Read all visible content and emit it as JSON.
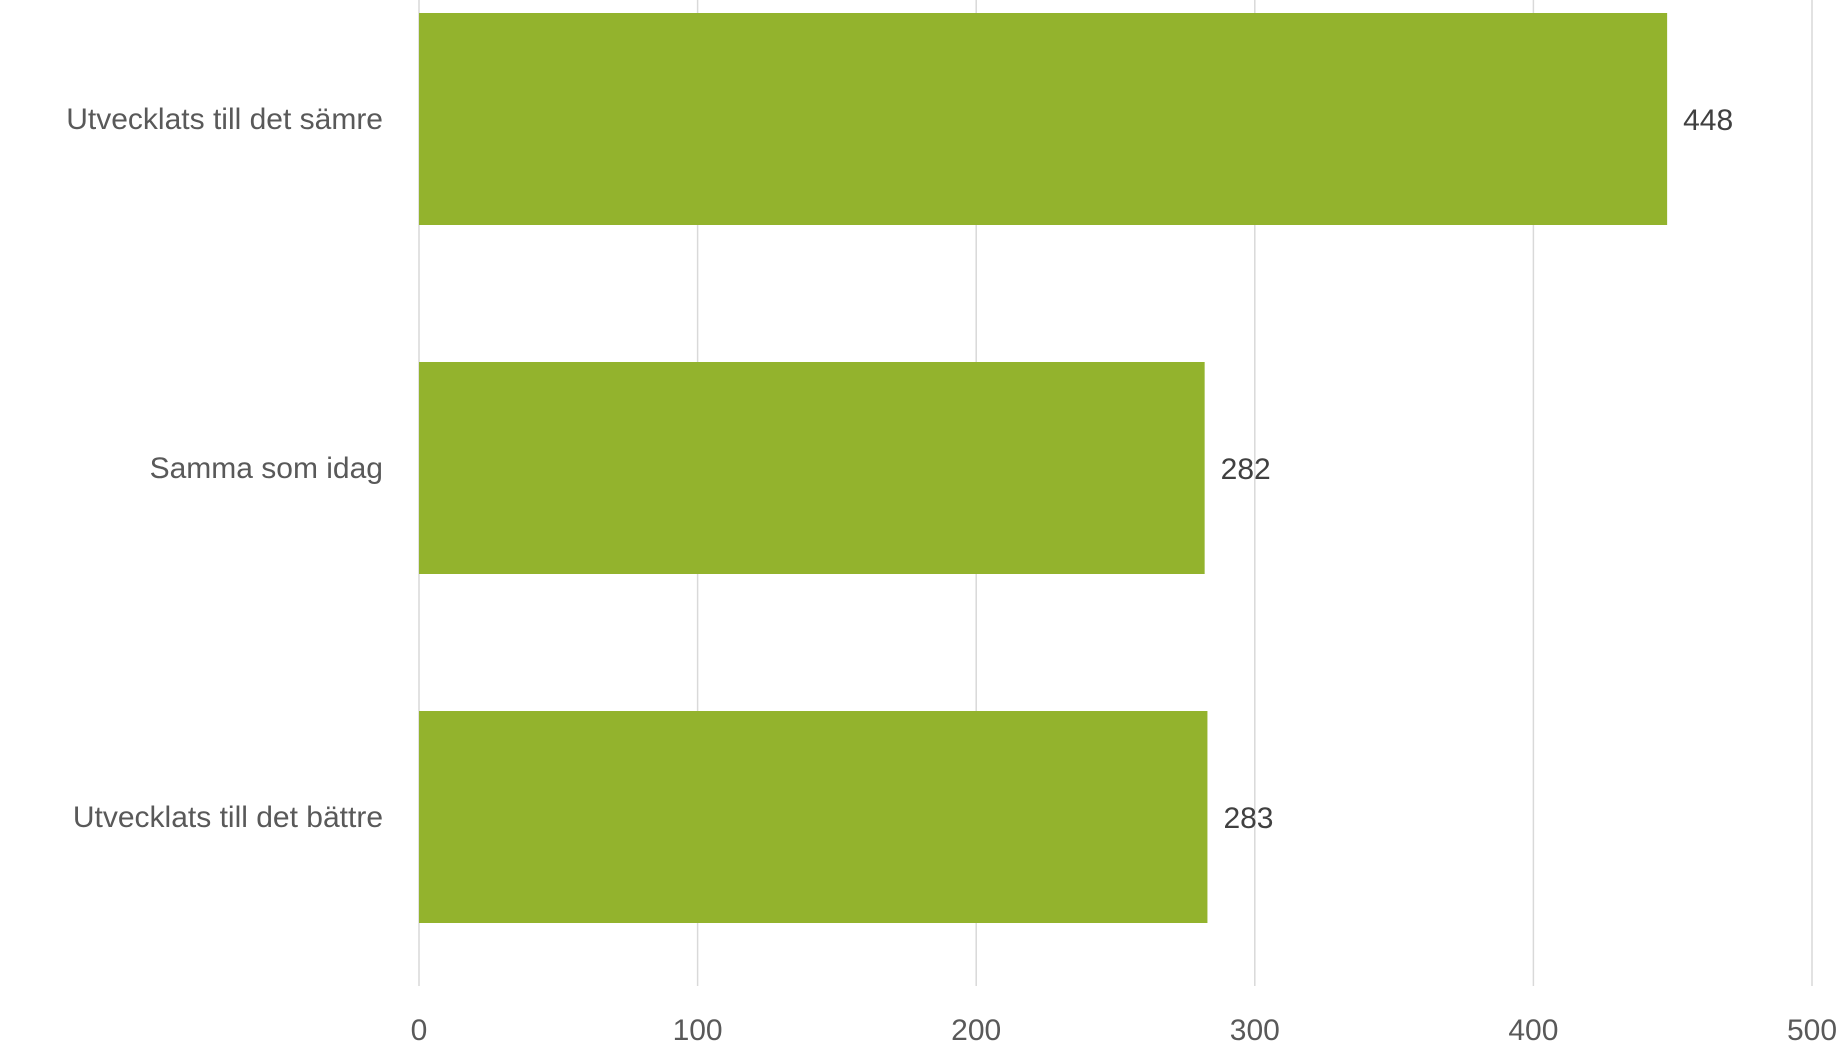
{
  "chart_data": {
    "type": "bar",
    "orientation": "horizontal",
    "categories": [
      "Utvecklats till det sämre",
      "Samma som idag",
      "Utvecklats till det bättre"
    ],
    "values": [
      448,
      282,
      283
    ],
    "data_labels": [
      "448",
      "282",
      "283"
    ],
    "xlim": [
      0,
      500
    ],
    "xticks": [
      0,
      100,
      200,
      300,
      400,
      500
    ],
    "xtick_labels": [
      "0",
      "100",
      "200",
      "300",
      "400",
      "500"
    ],
    "grid": "vertical",
    "legend": "none",
    "bar_color": "#93b32d",
    "gridline_color": "#d9d9d9",
    "title": "",
    "xlabel": "",
    "ylabel": ""
  }
}
